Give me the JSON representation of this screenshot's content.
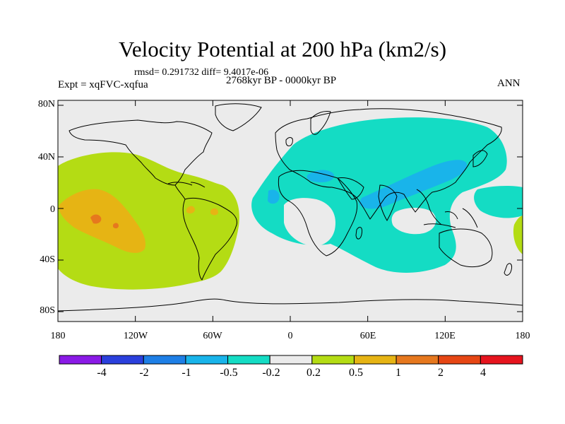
{
  "figure": {
    "title": "Velocity Potential at 200 hPa (km2/s)",
    "stats": "rmsd= 0.291732 diff= 9.4017e-06",
    "period": "2768kyr BP - 0000kyr BP",
    "experiment": "Expt = xqFVC-xqfua",
    "season": "ANN"
  },
  "axes": {
    "y_ticks": [
      "80N",
      "40N",
      "0",
      "40S",
      "80S"
    ],
    "x_ticks": [
      "180",
      "120W",
      "60W",
      "0",
      "60E",
      "120E",
      "180"
    ]
  },
  "colorbar": {
    "labels": [
      "-4",
      "-2",
      "-1",
      "-0.5",
      "-0.2",
      "0.2",
      "0.5",
      "1",
      "2",
      "4"
    ],
    "colors": [
      "#8a1ae6",
      "#2a3fdc",
      "#1e7fe6",
      "#19b4ea",
      "#14dcc4",
      "#ebebeb",
      "#b4dc14",
      "#e6b414",
      "#e6781e",
      "#e64614",
      "#e6141e"
    ]
  },
  "map_colors": {
    "background": "#ebebeb",
    "positive_weak": "#b4dc14",
    "positive_mid": "#e6b414",
    "positive_strong": "#e6781e",
    "negative_weak": "#14dcc4",
    "negative_mid": "#19b4ea",
    "land_outline": "#000000"
  }
}
